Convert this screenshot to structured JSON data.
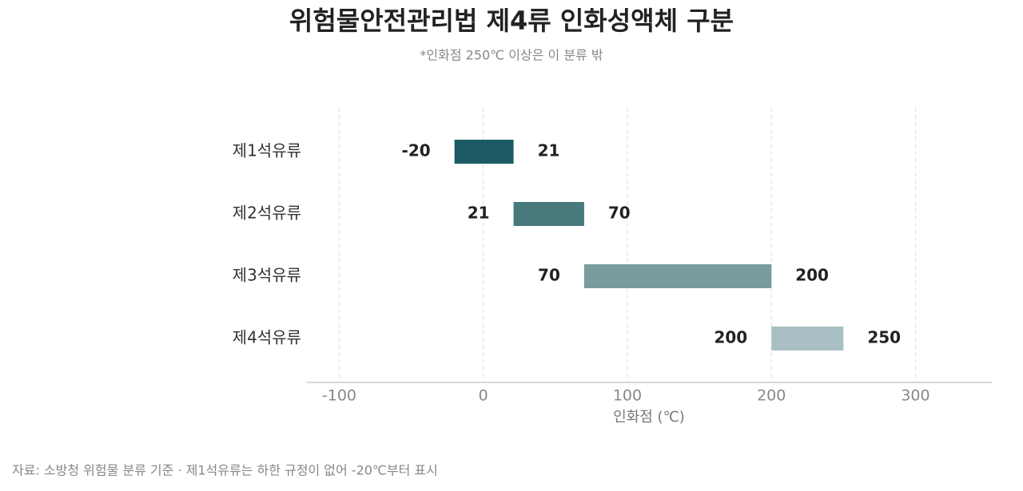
{
  "chart_data": {
    "type": "range-bar",
    "title": "위험물안전관리법 제4류 인화성액체 구분",
    "subtitle": "*인화점 250℃ 이상은 이 분류 밖",
    "x_label": "인화점 (℃)",
    "source": "자료: 소방청 위험물 분류 기준 · 제1석유류는 하한 규정이 없어 -20℃부터 표시",
    "categories": [
      "제1석유류",
      "제2석유류",
      "제3석유류",
      "제4석유류"
    ],
    "low": [
      -20,
      21,
      70,
      200
    ],
    "high": [
      21,
      70,
      200,
      250
    ],
    "colors": [
      "#1b5a62",
      "#487a7d",
      "#799c9e",
      "#a9bfc3"
    ],
    "xlim": [
      -123,
      353
    ],
    "xticks": [
      -100,
      0,
      100,
      200,
      300
    ],
    "grid": true
  }
}
